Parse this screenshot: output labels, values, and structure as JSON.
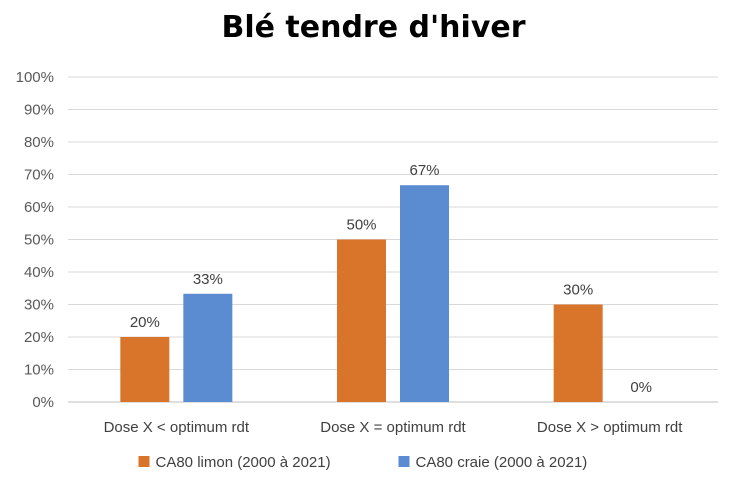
{
  "chart_data": {
    "type": "bar",
    "title": "Blé tendre d'hiver",
    "categories": [
      "Dose X < optimum rdt",
      "Dose X = optimum rdt",
      "Dose X > optimum rdt"
    ],
    "series": [
      {
        "name": "CA80 limon (2000 à 2021)",
        "values": [
          20,
          50,
          30
        ],
        "labels": [
          "20%",
          "50%",
          "30%"
        ],
        "color": "#D9742B"
      },
      {
        "name": "CA80 craie (2000 à 2021)",
        "values": [
          33.3,
          66.7,
          0
        ],
        "labels": [
          "33%",
          "67%",
          "0%"
        ],
        "color": "#5B8BD0"
      }
    ],
    "yticks": [
      "0%",
      "10%",
      "20%",
      "30%",
      "40%",
      "50%",
      "60%",
      "70%",
      "80%",
      "90%",
      "100%"
    ],
    "ylim": [
      0,
      100
    ],
    "grid": true,
    "legend": "bottom"
  }
}
